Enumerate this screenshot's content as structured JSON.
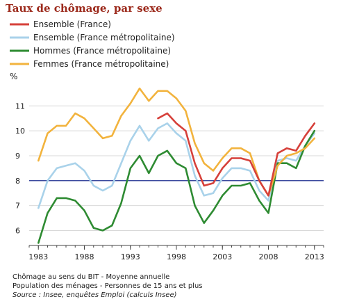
{
  "chart_data": {
    "type": "line",
    "title": "Taux de chômage, par sexe",
    "ylabel": "%",
    "xlabel": "",
    "xlim": [
      1982,
      2014
    ],
    "ylim": [
      5.4,
      11.9
    ],
    "x_ticks": [
      "1983",
      "1988",
      "1993",
      "1998",
      "2003",
      "2008",
      "2013"
    ],
    "y_ticks": [
      "6",
      "7",
      "8",
      "9",
      "10",
      "11"
    ],
    "reference_line": {
      "y": 8,
      "color": "#3b4a9e"
    },
    "grid": "horizontal",
    "legend_position": "top-left",
    "series": [
      {
        "name": "Ensemble (France)",
        "color": "#d6403a",
        "x": [
          1996,
          1997,
          1998,
          1999,
          2000,
          2001,
          2002,
          2003,
          2004,
          2005,
          2006,
          2007,
          2008,
          2009,
          2010,
          2011,
          2012,
          2013
        ],
        "values": [
          10.5,
          10.7,
          10.3,
          10.0,
          8.7,
          7.8,
          7.9,
          8.5,
          8.9,
          8.9,
          8.8,
          8.0,
          7.4,
          9.1,
          9.3,
          9.2,
          9.8,
          10.3
        ]
      },
      {
        "name": "Ensemble (France métropolitaine)",
        "color": "#a9d2ea",
        "x": [
          1983,
          1984,
          1985,
          1986,
          1987,
          1988,
          1989,
          1990,
          1991,
          1992,
          1993,
          1994,
          1995,
          1996,
          1997,
          1998,
          1999,
          2000,
          2001,
          2002,
          2003,
          2004,
          2005,
          2006,
          2007,
          2008,
          2009,
          2010,
          2011,
          2012,
          2013
        ],
        "values": [
          6.9,
          8.0,
          8.5,
          8.6,
          8.7,
          8.4,
          7.8,
          7.6,
          7.8,
          8.7,
          9.6,
          10.2,
          9.6,
          10.1,
          10.3,
          9.9,
          9.6,
          8.2,
          7.4,
          7.5,
          8.1,
          8.5,
          8.5,
          8.4,
          7.6,
          7.2,
          8.8,
          8.9,
          8.8,
          9.4,
          9.9
        ]
      },
      {
        "name": "Hommes (France métropolitaine)",
        "color": "#2e8b32",
        "x": [
          1983,
          1984,
          1985,
          1986,
          1987,
          1988,
          1989,
          1990,
          1991,
          1992,
          1993,
          1994,
          1995,
          1996,
          1997,
          1998,
          1999,
          2000,
          2001,
          2002,
          2003,
          2004,
          2005,
          2006,
          2007,
          2008,
          2009,
          2010,
          2011,
          2012,
          2013
        ],
        "values": [
          5.5,
          6.7,
          7.3,
          7.3,
          7.2,
          6.8,
          6.1,
          6.0,
          6.2,
          7.1,
          8.5,
          9.0,
          8.3,
          9.0,
          9.2,
          8.7,
          8.5,
          7.0,
          6.3,
          6.8,
          7.4,
          7.8,
          7.8,
          7.9,
          7.2,
          6.7,
          8.7,
          8.7,
          8.5,
          9.4,
          10.0
        ]
      },
      {
        "name": "Femmes (France métropolitaine)",
        "color": "#f2b33d",
        "x": [
          1983,
          1984,
          1985,
          1986,
          1987,
          1988,
          1989,
          1990,
          1991,
          1992,
          1993,
          1994,
          1995,
          1996,
          1997,
          1998,
          1999,
          2000,
          2001,
          2002,
          2003,
          2004,
          2005,
          2006,
          2007,
          2008,
          2009,
          2010,
          2011,
          2012,
          2013
        ],
        "values": [
          8.8,
          9.9,
          10.2,
          10.2,
          10.7,
          10.5,
          10.1,
          9.7,
          9.8,
          10.6,
          11.1,
          11.7,
          11.2,
          11.6,
          11.6,
          11.3,
          10.8,
          9.5,
          8.7,
          8.4,
          8.9,
          9.3,
          9.3,
          9.1,
          8.0,
          7.4,
          8.6,
          9.0,
          9.1,
          9.3,
          9.7
        ]
      }
    ]
  },
  "footnotes": {
    "line1": "Chômage au sens du BIT - Moyenne annuelle",
    "line2": "Population des ménages - Personnes de 15 ans et plus",
    "source": "Source : Insee, enquêtes Emploi (calculs Insee)"
  }
}
